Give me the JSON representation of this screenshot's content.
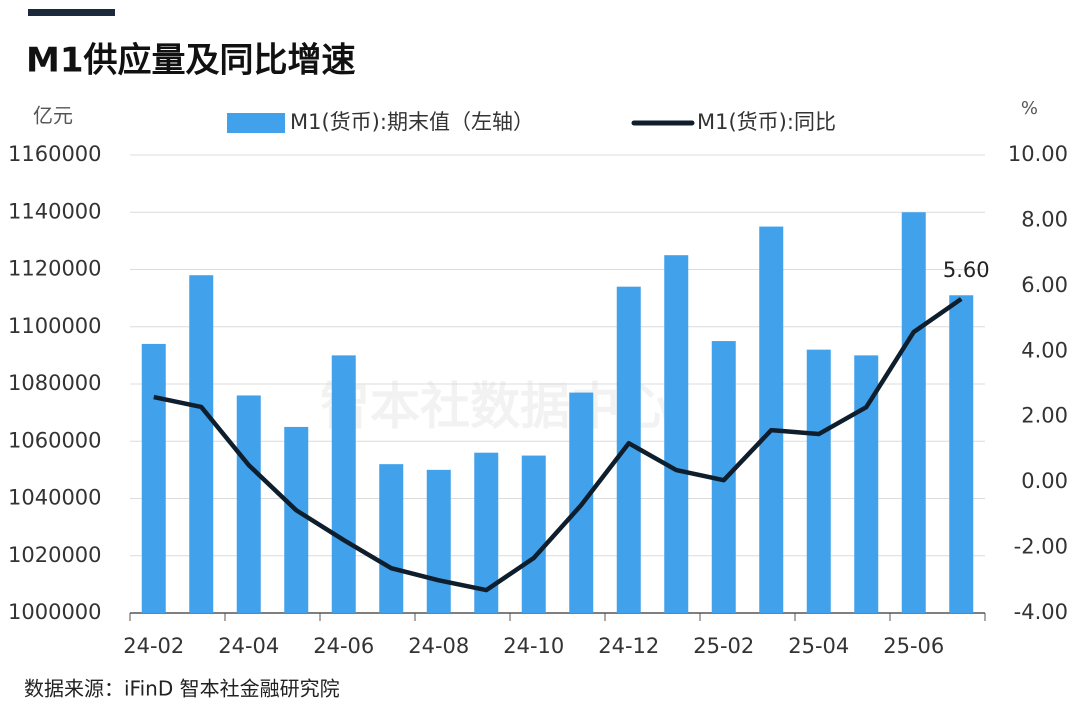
{
  "chart_data": {
    "type": "bar-line",
    "title": "M1供应量及同比增速",
    "y_label": "亿元",
    "y2_label": "%",
    "source": "数据来源：iFinD 智本社金融研究院",
    "watermark": "智本社数据中心",
    "categories": [
      "24-02",
      null,
      "24-04",
      null,
      "24-06",
      null,
      "24-08",
      null,
      "24-10",
      null,
      "24-12",
      null,
      "25-02",
      null,
      "25-04",
      null,
      "25-06",
      null
    ],
    "series": [
      {
        "name": "M1(货币):期末值（左轴）",
        "type": "bar",
        "color": "#41a1ea",
        "values": [
          1094000,
          1118000,
          1076000,
          1065000,
          1090000,
          1052000,
          1050000,
          1056000,
          1055000,
          1077000,
          1114000,
          1125000,
          1095000,
          1135000,
          1092000,
          1090000,
          1140000,
          1111000
        ]
      },
      {
        "name": "M1(货币):同比",
        "type": "line",
        "color": "#0f1e2d",
        "axis": "y2",
        "values": [
          2.6,
          2.3,
          0.52,
          -0.86,
          -1.77,
          -2.63,
          -3.0,
          -3.3,
          -2.32,
          -0.7,
          1.19,
          0.37,
          0.06,
          1.59,
          1.47,
          2.29,
          4.59,
          5.6
        ],
        "value_labels": [
          null,
          null,
          null,
          null,
          null,
          null,
          null,
          null,
          null,
          null,
          null,
          null,
          null,
          null,
          null,
          null,
          null,
          "5.60"
        ]
      }
    ],
    "ylim": [
      1000000,
      1160000
    ],
    "yticks": [
      1000000,
      1020000,
      1040000,
      1060000,
      1080000,
      1100000,
      1120000,
      1140000,
      1160000
    ],
    "y2lim": [
      -4,
      10
    ],
    "y2ticks": [
      {
        "value": -4,
        "label": "-4.00"
      },
      {
        "value": -2,
        "label": "-2.00"
      },
      {
        "value": 0,
        "label": "0.00"
      },
      {
        "value": 2,
        "label": "2.00"
      },
      {
        "value": 4,
        "label": "4.00"
      },
      {
        "value": 6,
        "label": "6.00"
      },
      {
        "value": 8,
        "label": "8.00"
      },
      {
        "value": 10,
        "label": "10.00"
      }
    ],
    "grid": true
  }
}
